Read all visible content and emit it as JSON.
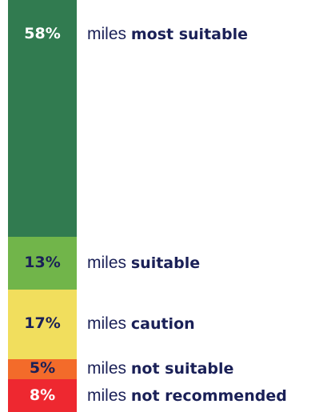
{
  "chart_data": {
    "type": "bar",
    "orientation": "stacked-vertical",
    "categories": [
      "most suitable",
      "suitable",
      "caution",
      "not suitable",
      "not recommended"
    ],
    "values": [
      58,
      13,
      17,
      5,
      8
    ],
    "value_labels": [
      "58%",
      "13%",
      "17%",
      "5%",
      "8%"
    ],
    "label_prefix": "miles",
    "colors": [
      "#317b50",
      "#71b54a",
      "#f1de5d",
      "#f36b2a",
      "#ee2830"
    ],
    "value_label_colors": [
      "#ffffff",
      "#1a2057",
      "#1a2057",
      "#1a2057",
      "#ffffff"
    ],
    "label_color": "#1a2057"
  }
}
